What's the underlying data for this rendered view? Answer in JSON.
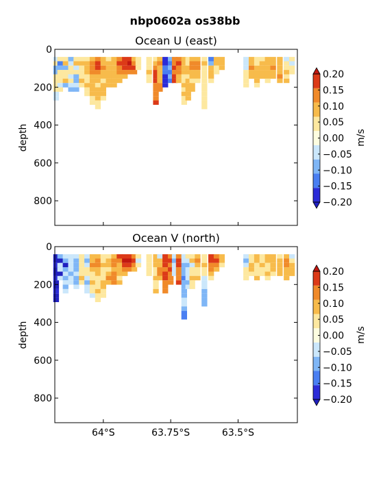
{
  "figure": {
    "title": "nbp0602a os38bb"
  },
  "colorscale": {
    "levels": [
      -0.2,
      -0.15,
      -0.1,
      -0.05,
      0.0,
      0.05,
      0.1,
      0.15,
      0.2
    ],
    "colors": [
      "#2c2cd8",
      "#4a7ff2",
      "#7fb6f6",
      "#cbe7fb",
      "#fdfde0",
      "#fde8a0",
      "#f7bb4b",
      "#f08a2a",
      "#dc3a18"
    ],
    "under_color": "#2020c0",
    "over_color": "#c01810",
    "tick_labels": [
      "0.20",
      "0.15",
      "0.10",
      "0.05",
      "0.00",
      "−0.05",
      "−0.10",
      "−0.15",
      "−0.20"
    ],
    "unit_label": "m/s"
  },
  "chart_data": [
    {
      "type": "heatmap",
      "title": "Ocean U (east)",
      "xlabel": "",
      "ylabel": "depth",
      "xlim": [
        64.18,
        63.28
      ],
      "ylim": [
        930,
        0
      ],
      "x_ticks": [
        {
          "value": 64.0,
          "label": "64°S"
        },
        {
          "value": 63.75,
          "label": "63.75°S"
        },
        {
          "value": 63.5,
          "label": "63.5°S"
        }
      ],
      "y_ticks": [
        0,
        200,
        400,
        600,
        800
      ],
      "columns": [
        {
          "lat": 64.175,
          "values": [
            -0.04,
            0.04,
            -0.06,
            -0.08,
            0.02,
            0.03,
            0.04,
            0.02,
            -0.03,
            -0.05
          ]
        },
        {
          "lat": 64.16,
          "values": [
            0.02,
            -0.12,
            -0.06,
            0.03,
            0.04,
            0.02,
            -0.02,
            0.03
          ]
        },
        {
          "lat": 64.14,
          "values": [
            0.03,
            0.06,
            -0.08,
            0.04,
            0.02,
            0.05,
            -0.06
          ]
        },
        {
          "lat": 64.12,
          "values": [
            -0.06,
            -0.04,
            0.04,
            0.02,
            -0.05,
            0.03,
            -0.02,
            -0.06
          ]
        },
        {
          "lat": 64.1,
          "values": [
            0.04,
            0.06,
            -0.03,
            0.03,
            -0.07,
            -0.09,
            -0.05,
            -0.08
          ]
        },
        {
          "lat": 64.08,
          "values": [
            0.03,
            0.05,
            0.04,
            0.02,
            0.03,
            0.06,
            0.04
          ]
        },
        {
          "lat": 64.06,
          "values": [
            0.04,
            0.07,
            0.05,
            0.06,
            0.04,
            0.03,
            0.05,
            0.04,
            0.03
          ]
        },
        {
          "lat": 64.04,
          "values": [
            0.09,
            0.12,
            0.13,
            0.1,
            0.07,
            0.06,
            0.08,
            0.05,
            0.06,
            0.04,
            0.03
          ]
        },
        {
          "lat": 64.02,
          "values": [
            0.11,
            0.15,
            0.17,
            0.12,
            0.08,
            0.05,
            0.04,
            0.06,
            0.08,
            0.05,
            0.04,
            0.03
          ]
        },
        {
          "lat": 64.0,
          "values": [
            0.06,
            0.08,
            0.1,
            0.07,
            0.05,
            0.04,
            0.07,
            0.09,
            0.06,
            0.04
          ]
        },
        {
          "lat": 63.98,
          "values": [
            0.04,
            0.05,
            0.06,
            0.07,
            0.05,
            0.06,
            0.08
          ]
        },
        {
          "lat": 63.96,
          "values": [
            0.05,
            0.07,
            0.06,
            0.09,
            0.08,
            0.06,
            0.05
          ]
        },
        {
          "lat": 63.94,
          "values": [
            0.13,
            0.16,
            0.14,
            0.1,
            0.07,
            0.06
          ]
        },
        {
          "lat": 63.92,
          "values": [
            0.17,
            0.19,
            0.16,
            0.12,
            0.09
          ]
        },
        {
          "lat": 63.9,
          "values": [
            0.19,
            0.2,
            0.18,
            0.13
          ]
        },
        {
          "lat": 63.885,
          "values": [
            0.08,
            0.14,
            0.17,
            0.1
          ]
        },
        {
          "lat": 63.87,
          "values": [
            0.0,
            0.0,
            0.02
          ]
        },
        {
          "lat": 63.83,
          "values": [
            0.0,
            0.02,
            0.04,
            0.06,
            0.03,
            0.02
          ]
        },
        {
          "lat": 63.805,
          "values": [
            0.04,
            0.08,
            0.12,
            0.15,
            0.18,
            0.16,
            0.14,
            0.12,
            0.1,
            0.13,
            0.15
          ]
        },
        {
          "lat": 63.79,
          "values": [
            0.06,
            0.1,
            0.08,
            0.05,
            0.07,
            0.09,
            0.12,
            0.14
          ]
        },
        {
          "lat": 63.77,
          "values": [
            -0.2,
            -0.18,
            -0.15,
            -0.12,
            -0.16,
            -0.19,
            -0.17
          ]
        },
        {
          "lat": 63.75,
          "values": [
            -0.08,
            -0.12,
            -0.1,
            -0.14,
            -0.09,
            -0.11
          ]
        },
        {
          "lat": 63.735,
          "values": [
            0.1,
            0.14,
            0.16,
            0.12,
            0.17,
            0.15
          ]
        },
        {
          "lat": 63.72,
          "values": [
            0.12,
            0.15,
            0.13,
            0.1,
            0.08,
            0.06
          ]
        },
        {
          "lat": 63.7,
          "values": [
            0.06,
            0.08,
            0.05,
            0.07,
            0.04,
            0.03,
            0.05,
            0.04,
            0.06,
            0.03,
            0.02
          ]
        },
        {
          "lat": 63.685,
          "values": [
            0.03,
            0.04,
            0.05,
            0.06,
            0.04,
            0.05,
            0.06,
            0.07,
            0.06,
            0.05
          ]
        },
        {
          "lat": 63.67,
          "values": [
            0.08,
            0.12,
            0.1,
            0.06,
            0.05,
            0.04,
            0.06,
            0.08
          ]
        },
        {
          "lat": 63.65,
          "values": [
            0.09,
            0.12,
            0.1,
            0.08,
            0.06,
            0.04
          ]
        },
        {
          "lat": 63.625,
          "values": [
            0.03,
            0.05,
            0.04,
            0.02,
            0.03,
            0.04,
            0.03,
            0.02,
            0.03,
            0.04,
            0.03,
            0.02
          ]
        },
        {
          "lat": 63.6,
          "values": [
            -0.15,
            -0.1,
            0.06,
            0.08,
            0.05,
            0.04
          ]
        },
        {
          "lat": 63.58,
          "values": [
            0.05,
            0.08,
            0.04,
            0.03
          ]
        },
        {
          "lat": 63.56,
          "values": [
            0.06,
            0.07,
            0.05
          ]
        },
        {
          "lat": 63.47,
          "values": [
            -0.04,
            -0.05,
            -0.03,
            0.03,
            0.04,
            0.03,
            0.04
          ]
        },
        {
          "lat": 63.45,
          "values": [
            0.05,
            0.07,
            0.1,
            0.08,
            0.06
          ]
        },
        {
          "lat": 63.43,
          "values": [
            0.03,
            0.04,
            0.05,
            0.06,
            0.07,
            0.05,
            0.04
          ]
        },
        {
          "lat": 63.41,
          "values": [
            0.04,
            0.06,
            0.08,
            0.06,
            0.05
          ]
        },
        {
          "lat": 63.39,
          "values": [
            0.06,
            0.08,
            0.09,
            0.07,
            0.05,
            0.04
          ]
        },
        {
          "lat": 63.37,
          "values": [
            0.07,
            0.09,
            0.1,
            0.08,
            0.06
          ]
        },
        {
          "lat": 63.345,
          "values": [
            0.05,
            0.08,
            0.07,
            0.09,
            0.1,
            0.08
          ]
        },
        {
          "lat": 63.32,
          "values": [
            -0.03,
            0.04,
            0.03,
            0.05,
            0.04,
            0.06
          ]
        },
        {
          "lat": 63.3,
          "values": [
            0.02,
            -0.03,
            0.04,
            0.02
          ]
        }
      ]
    },
    {
      "type": "heatmap",
      "title": "Ocean V (north)",
      "xlabel": "",
      "ylabel": "depth",
      "xlim": [
        64.18,
        63.28
      ],
      "ylim": [
        930,
        0
      ],
      "x_ticks": [
        {
          "value": 64.0,
          "label": "64°S"
        },
        {
          "value": 63.75,
          "label": "63.75°S"
        },
        {
          "value": 63.5,
          "label": "63.5°S"
        }
      ],
      "y_ticks": [
        0,
        200,
        400,
        600,
        800
      ],
      "columns": [
        {
          "lat": 64.175,
          "values": [
            -0.22,
            -0.22,
            -0.2,
            -0.21,
            -0.22,
            -0.2,
            -0.22,
            -0.21,
            -0.2,
            -0.22,
            -0.21
          ]
        },
        {
          "lat": 64.16,
          "values": [
            -0.06,
            -0.22,
            -0.04,
            -0.03,
            -0.21,
            -0.02
          ]
        },
        {
          "lat": 64.14,
          "values": [
            -0.05,
            -0.07,
            -0.22,
            -0.06,
            -0.05,
            -0.08,
            -0.04,
            -0.06,
            -0.05
          ]
        },
        {
          "lat": 64.12,
          "values": [
            -0.04,
            -0.03,
            -0.05,
            -0.04,
            -0.06,
            -0.03,
            -0.02
          ]
        },
        {
          "lat": 64.1,
          "values": [
            -0.03,
            -0.06,
            -0.08,
            -0.07,
            -0.05,
            -0.09,
            -0.06,
            -0.04
          ]
        },
        {
          "lat": 64.08,
          "values": [
            0.03,
            0.04,
            0.03,
            0.02,
            0.04,
            0.05,
            0.03
          ]
        },
        {
          "lat": 64.06,
          "values": [
            -0.04,
            -0.06,
            -0.03,
            0.03,
            0.04,
            -0.05,
            -0.06,
            -0.04,
            -0.03
          ]
        },
        {
          "lat": 64.04,
          "values": [
            0.05,
            0.09,
            0.12,
            0.08,
            0.04,
            0.03,
            0.05,
            0.04,
            0.03,
            -0.03
          ]
        },
        {
          "lat": 64.02,
          "values": [
            0.06,
            0.1,
            0.14,
            0.08,
            0.05,
            0.04,
            0.03,
            0.04,
            0.05,
            0.03,
            0.02
          ]
        },
        {
          "lat": 64.0,
          "values": [
            0.03,
            0.04,
            0.05,
            0.04,
            0.03,
            0.04,
            0.06,
            0.05,
            0.04,
            0.03
          ]
        },
        {
          "lat": 63.98,
          "values": [
            0.04,
            0.05,
            0.06,
            0.04,
            0.08,
            0.1,
            0.07
          ]
        },
        {
          "lat": 63.96,
          "values": [
            0.06,
            0.1,
            0.12,
            0.08,
            0.11,
            0.13,
            0.1
          ]
        },
        {
          "lat": 63.94,
          "values": [
            0.15,
            0.12,
            0.09,
            0.07,
            0.05,
            0.04,
            0.06
          ]
        },
        {
          "lat": 63.92,
          "values": [
            0.18,
            0.2,
            0.16,
            0.12,
            0.08
          ]
        },
        {
          "lat": 63.9,
          "values": [
            0.19,
            0.21,
            0.17,
            0.14
          ]
        },
        {
          "lat": 63.885,
          "values": [
            0.1,
            0.15,
            0.12,
            0.08
          ]
        },
        {
          "lat": 63.87,
          "values": [
            0.02,
            -0.03,
            0.03
          ]
        },
        {
          "lat": 63.83,
          "values": [
            0.03,
            0.02,
            0.03,
            0.04,
            0.02
          ]
        },
        {
          "lat": 63.805,
          "values": [
            0.05,
            0.08,
            0.06,
            0.04,
            0.03,
            0.05,
            0.04,
            0.03,
            0.05
          ]
        },
        {
          "lat": 63.79,
          "values": [
            -0.03,
            0.05,
            0.07,
            0.12,
            0.1,
            0.08
          ]
        },
        {
          "lat": 63.77,
          "values": [
            0.15,
            0.19,
            0.17,
            0.13,
            0.16,
            0.18,
            0.14,
            0.12,
            0.1
          ]
        },
        {
          "lat": 63.75,
          "values": [
            0.12,
            0.16,
            0.14,
            0.15,
            0.11,
            0.1,
            0.12
          ]
        },
        {
          "lat": 63.735,
          "values": [
            -0.04,
            -0.06,
            -0.03,
            -0.05,
            -0.02
          ]
        },
        {
          "lat": 63.72,
          "values": [
            0.13,
            0.17,
            0.15,
            0.12,
            0.1,
            0.14,
            0.16
          ]
        },
        {
          "lat": 63.7,
          "values": [
            -0.03,
            -0.05,
            -0.07,
            -0.06,
            -0.09,
            -0.12,
            -0.1,
            -0.08,
            -0.06,
            -0.07,
            -0.05,
            -0.04,
            -0.08,
            -0.11,
            -0.14
          ]
        },
        {
          "lat": 63.685,
          "values": [
            0.03,
            -0.04,
            -0.06,
            -0.05,
            -0.03,
            -0.04,
            -0.06,
            -0.03
          ]
        },
        {
          "lat": 63.67,
          "values": [
            0.04,
            0.05,
            -0.03,
            0.03,
            0.04,
            0.05,
            0.03,
            0.02
          ]
        },
        {
          "lat": 63.65,
          "values": [
            0.08,
            0.1,
            0.06,
            0.04,
            0.03,
            0.05
          ]
        },
        {
          "lat": 63.625,
          "values": [
            0.03,
            0.04,
            0.05,
            0.03,
            0.02,
            -0.03,
            -0.05,
            -0.04,
            -0.06,
            -0.08,
            -0.07,
            -0.09
          ]
        },
        {
          "lat": 63.6,
          "values": [
            0.16,
            0.18,
            0.14,
            0.1,
            0.06,
            0.04
          ]
        },
        {
          "lat": 63.58,
          "values": [
            0.12,
            0.15,
            0.1,
            0.08
          ]
        },
        {
          "lat": 63.56,
          "values": [
            0.05,
            0.06,
            0.04
          ]
        },
        {
          "lat": 63.47,
          "values": [
            -0.05,
            -0.06,
            -0.04,
            0.03,
            0.04,
            0.03
          ]
        },
        {
          "lat": 63.45,
          "values": [
            0.03,
            0.04,
            0.06,
            0.05,
            0.04
          ]
        },
        {
          "lat": 63.43,
          "values": [
            0.06,
            0.08,
            0.04,
            0.03,
            0.04,
            0.05
          ]
        },
        {
          "lat": 63.41,
          "values": [
            0.04,
            0.03,
            0.05,
            0.04,
            0.03
          ]
        },
        {
          "lat": 63.39,
          "values": [
            0.05,
            0.06,
            0.04,
            0.03,
            0.05,
            0.04
          ]
        },
        {
          "lat": 63.37,
          "values": [
            0.07,
            0.09,
            0.06,
            0.05,
            0.04
          ]
        },
        {
          "lat": 63.345,
          "values": [
            0.04,
            0.06,
            0.05,
            0.07,
            0.05
          ]
        },
        {
          "lat": 63.32,
          "values": [
            0.08,
            0.1,
            0.12,
            0.09,
            0.07,
            0.06
          ]
        },
        {
          "lat": 63.3,
          "values": [
            -0.04,
            0.03,
            0.06,
            0.08,
            0.05
          ]
        }
      ]
    }
  ]
}
